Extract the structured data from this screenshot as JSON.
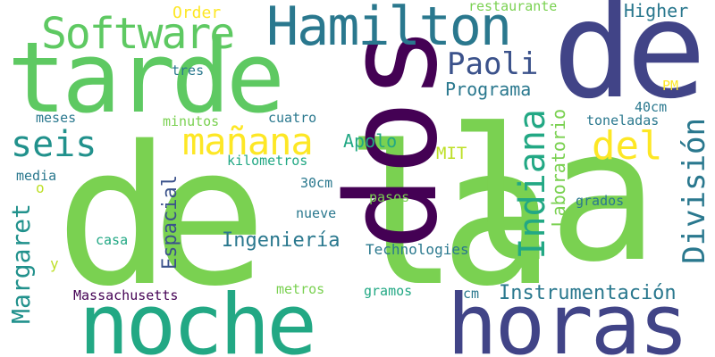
{
  "words": [
    {
      "text": "de la",
      "color": "#7ad151"
    },
    {
      "text": "dos",
      "color": "#440154"
    },
    {
      "text": "de",
      "color": "#414487"
    },
    {
      "text": "la",
      "color": "#7ad151"
    },
    {
      "text": "tarde",
      "color": "#5ec962"
    },
    {
      "text": "noche",
      "color": "#22a884"
    },
    {
      "text": "horas",
      "color": "#414487"
    },
    {
      "text": "Hamilton",
      "color": "#2a788e"
    },
    {
      "text": "Software",
      "color": "#5ec962"
    },
    {
      "text": "mañana",
      "color": "#fde725"
    },
    {
      "text": "seis",
      "color": "#21918c"
    },
    {
      "text": "del",
      "color": "#fde725"
    },
    {
      "text": "Paoli",
      "color": "#3b528b"
    },
    {
      "text": "Indiana",
      "color": "#22a884"
    },
    {
      "text": "División",
      "color": "#2a788e"
    },
    {
      "text": "Margaret",
      "color": "#21918c"
    },
    {
      "text": "Ingeniería",
      "color": "#2a788e"
    },
    {
      "text": "Instrumentación",
      "color": "#2a788e"
    },
    {
      "text": "Espacial",
      "color": "#3b528b"
    },
    {
      "text": "Programa",
      "color": "#2a788e"
    },
    {
      "text": "Laboratorio",
      "color": "#7ad151"
    },
    {
      "text": "Apolo",
      "color": "#22a884"
    },
    {
      "text": "Higher",
      "color": "#2a788e"
    },
    {
      "text": "Order",
      "color": "#fde725"
    },
    {
      "text": "restaurante",
      "color": "#7ad151"
    },
    {
      "text": "MIT",
      "color": "#bddf26"
    },
    {
      "text": "PM",
      "color": "#fde725"
    },
    {
      "text": "40cm",
      "color": "#2a788e"
    },
    {
      "text": "tres",
      "color": "#2a788e"
    },
    {
      "text": "meses",
      "color": "#2a788e"
    },
    {
      "text": "minutos",
      "color": "#7ad151"
    },
    {
      "text": "cuatro",
      "color": "#2a788e"
    },
    {
      "text": "toneladas",
      "color": "#2a788e"
    },
    {
      "text": "kilometros",
      "color": "#22a884"
    },
    {
      "text": "media",
      "color": "#2a788e"
    },
    {
      "text": "o",
      "color": "#bddf26"
    },
    {
      "text": "30cm",
      "color": "#2a788e"
    },
    {
      "text": "pasos",
      "color": "#7ad151"
    },
    {
      "text": "grados",
      "color": "#2a788e"
    },
    {
      "text": "nueve",
      "color": "#2a788e"
    },
    {
      "text": "casa",
      "color": "#22a884"
    },
    {
      "text": "Technologies",
      "color": "#2a788e"
    },
    {
      "text": "y",
      "color": "#bddf26"
    },
    {
      "text": "Massachusetts",
      "color": "#440154"
    },
    {
      "text": "metros",
      "color": "#7ad151"
    },
    {
      "text": "gramos",
      "color": "#22a884"
    },
    {
      "text": "cm",
      "color": "#2a788e"
    }
  ]
}
